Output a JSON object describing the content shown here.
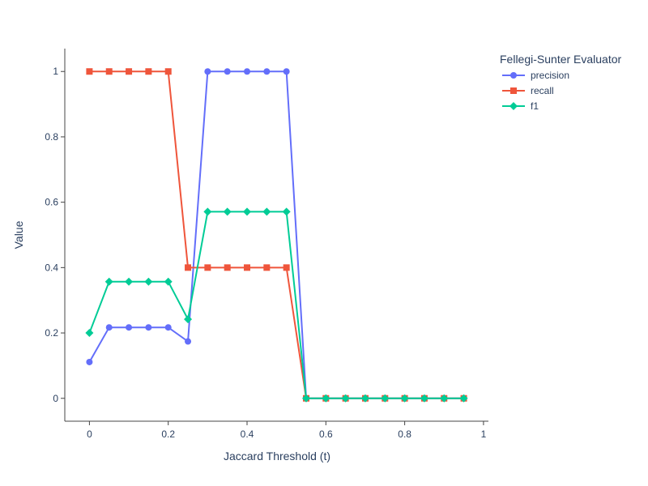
{
  "chart_data": {
    "type": "line",
    "xlabel": "Jaccard Threshold (t)",
    "ylabel": "Value",
    "legend_title": "Fellegi-Sunter Evaluator",
    "legend_position": "top-right, outside plot",
    "xlim": [
      -0.0625,
      1.0125
    ],
    "ylim": [
      -0.07,
      1.07
    ],
    "x_ticks": [
      0,
      0.2,
      0.4,
      0.6,
      0.8,
      1
    ],
    "x_tick_labels": [
      "0",
      "0.2",
      "0.4",
      "0.6",
      "0.8",
      "1"
    ],
    "y_ticks": [
      0,
      0.2,
      0.4,
      0.6,
      0.8,
      1
    ],
    "y_tick_labels": [
      "0",
      "0.2",
      "0.4",
      "0.6",
      "0.8",
      "1"
    ],
    "grid": false,
    "x": [
      0,
      0.05,
      0.1,
      0.15,
      0.2,
      0.25,
      0.3,
      0.35,
      0.4,
      0.45,
      0.5,
      0.55,
      0.6,
      0.65,
      0.7,
      0.75,
      0.8,
      0.85,
      0.9,
      0.95
    ],
    "series": [
      {
        "name": "precision",
        "color": "#636efa",
        "marker": "circle",
        "values": [
          0.111,
          0.217,
          0.217,
          0.217,
          0.217,
          0.174,
          1,
          1,
          1,
          1,
          1,
          0,
          0,
          0,
          0,
          0,
          0,
          0,
          0,
          0
        ]
      },
      {
        "name": "recall",
        "color": "#ef553b",
        "marker": "square",
        "values": [
          1,
          1,
          1,
          1,
          1,
          0.4,
          0.4,
          0.4,
          0.4,
          0.4,
          0.4,
          0,
          0,
          0,
          0,
          0,
          0,
          0,
          0,
          0
        ]
      },
      {
        "name": "f1",
        "color": "#00cc96",
        "marker": "diamond",
        "values": [
          0.2,
          0.357,
          0.357,
          0.357,
          0.357,
          0.242,
          0.571,
          0.571,
          0.571,
          0.571,
          0.571,
          0,
          0,
          0,
          0,
          0,
          0,
          0,
          0,
          0
        ]
      }
    ]
  }
}
